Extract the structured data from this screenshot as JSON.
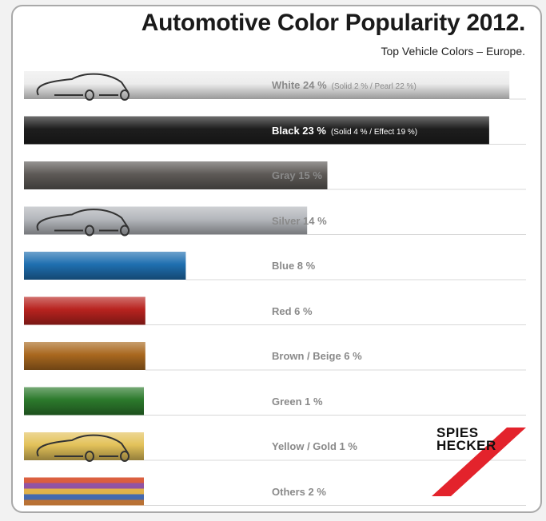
{
  "header": {
    "title": "Automotive Color Popularity 2012.",
    "subtitle": "Top Vehicle Colors – Europe."
  },
  "chart_data": {
    "type": "bar",
    "orientation": "horizontal",
    "unit": "%",
    "categories": [
      "White",
      "Black",
      "Gray",
      "Silver",
      "Blue",
      "Red",
      "Brown / Beige",
      "Green",
      "Yellow / Gold",
      "Others"
    ],
    "values": [
      24,
      23,
      15,
      14,
      8,
      6,
      6,
      1,
      1,
      2
    ],
    "labels": [
      {
        "main": "White 24 %",
        "detail": "(Solid 2 % / Pearl 22 %)"
      },
      {
        "main": "Black 23 %",
        "detail": "(Solid 4 % / Effect 19 %)"
      },
      {
        "main": "Gray 15 %",
        "detail": ""
      },
      {
        "main": "Silver 14 %",
        "detail": ""
      },
      {
        "main": "Blue 8 %",
        "detail": ""
      },
      {
        "main": "Red 6 %",
        "detail": ""
      },
      {
        "main": "Brown / Beige 6 %",
        "detail": ""
      },
      {
        "main": "Green 1 %",
        "detail": ""
      },
      {
        "main": "Yellow / Gold 1 %",
        "detail": ""
      },
      {
        "main": "Others 2 %",
        "detail": ""
      }
    ],
    "colors": [
      "#ececec",
      "#1e1e1e",
      "#5e5a57",
      "#b4b7bc",
      "#1f6fb0",
      "#b8231f",
      "#a9681f",
      "#2c7a2c",
      "#e3c25a",
      "#9a5a9e"
    ],
    "car_outline_rows": [
      "White",
      "Silver",
      "Yellow / Gold"
    ],
    "legend": "none",
    "grid": false
  },
  "brand": {
    "line1": "SPIES",
    "line2": "HECKER",
    "accent_color": "#e3232c"
  }
}
